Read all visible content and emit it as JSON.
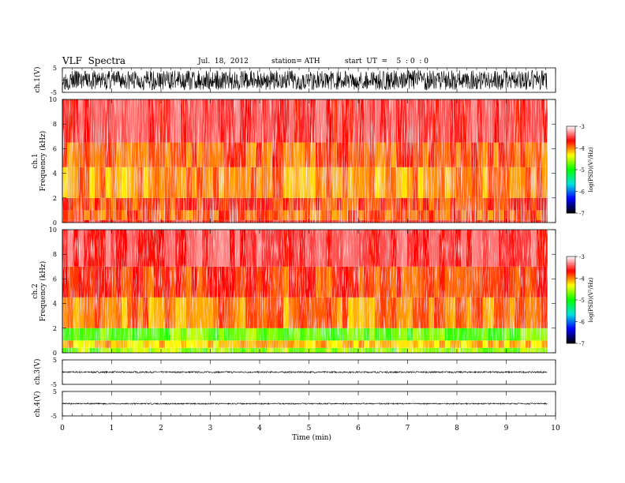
{
  "header": {
    "title": "VLF  Spectra",
    "date": "Jul.  18,  2012",
    "station": "station= ATH",
    "start": "start  UT  =    5  : 0  : 0"
  },
  "chart_data": [
    {
      "type": "line",
      "panel": "ch1-waveform",
      "ylabel": "ch.1(V)",
      "ylim": [
        -5,
        5
      ],
      "ytick_labels": [
        "5",
        "-5"
      ],
      "xlim": [
        0,
        10
      ],
      "data_extent_min": 9.83,
      "amplitude_envelope": 4.0
    },
    {
      "type": "heatmap",
      "panel": "ch1-spectrogram",
      "ylabel_line1": "ch.1",
      "ylabel_line2": "Frequency  (kHz)",
      "ylim": [
        0,
        10
      ],
      "yticks": [
        "0",
        "2",
        "4",
        "6",
        "8",
        "10"
      ],
      "xlim": [
        0,
        10
      ],
      "data_extent_min": 9.83,
      "colorbar": {
        "label": "log(PSD)(V²/Hz)",
        "range": [
          -7,
          -3
        ],
        "ticks": [
          "-3",
          "-4",
          "-5",
          "-6",
          "-7"
        ],
        "colors": [
          "#000000",
          "#0000ff",
          "#00e0e0",
          "#00ff00",
          "#ffff00",
          "#ff0000",
          "#ffffff"
        ]
      },
      "bands": [
        {
          "freq_khz": [
            0,
            0.2
          ],
          "level": -3.6
        },
        {
          "freq_khz": [
            0.2,
            1.0
          ],
          "level": -3.9
        },
        {
          "freq_khz": [
            1.0,
            2.0
          ],
          "level": -3.8
        },
        {
          "freq_khz": [
            2.0,
            4.5
          ],
          "level": -4.05
        },
        {
          "freq_khz": [
            4.5,
            6.5
          ],
          "level": -3.9
        },
        {
          "freq_khz": [
            6.5,
            10.0
          ],
          "level": -3.55
        }
      ]
    },
    {
      "type": "heatmap",
      "panel": "ch2-spectrogram",
      "ylabel_line1": "ch.2",
      "ylabel_line2": "Frequency  (kHz)",
      "ylim": [
        0,
        10
      ],
      "yticks": [
        "0",
        "2",
        "4",
        "6",
        "8",
        "10"
      ],
      "xlim": [
        0,
        10
      ],
      "data_extent_min": 9.83,
      "colorbar": {
        "label": "log(PSD)(V²/Hz)",
        "range": [
          -7,
          -3
        ],
        "ticks": [
          "-3",
          "-4",
          "-5",
          "-6",
          "-7"
        ],
        "colors": [
          "#000000",
          "#0000ff",
          "#00e0e0",
          "#00ff00",
          "#ffff00",
          "#ff0000",
          "#ffffff"
        ]
      },
      "bands": [
        {
          "freq_khz": [
            0,
            0.4
          ],
          "level": -4.6
        },
        {
          "freq_khz": [
            0.4,
            1.0
          ],
          "level": -4.2
        },
        {
          "freq_khz": [
            1.0,
            2.0
          ],
          "level": -4.7
        },
        {
          "freq_khz": [
            2.0,
            4.5
          ],
          "level": -4.0
        },
        {
          "freq_khz": [
            4.5,
            7.0
          ],
          "level": -3.8
        },
        {
          "freq_khz": [
            7.0,
            10.0
          ],
          "level": -3.5
        }
      ]
    },
    {
      "type": "line",
      "panel": "ch3-waveform",
      "ylabel": "ch.3(V)",
      "ylim": [
        -5,
        5
      ],
      "ytick_labels": [
        "5",
        "-5"
      ],
      "xlim": [
        0,
        10
      ],
      "data_extent_min": 9.83,
      "amplitude_envelope": 0.3
    },
    {
      "type": "line",
      "panel": "ch4-waveform",
      "ylabel": "ch.4(V)",
      "ylim": [
        -5,
        5
      ],
      "ytick_labels": [
        "5",
        "-5"
      ],
      "xlim": [
        0,
        10
      ],
      "data_extent_min": 9.83,
      "amplitude_envelope": 0.25
    }
  ],
  "x_axis": {
    "label": "Time  (min)",
    "ticks": [
      "0",
      "1",
      "2",
      "3",
      "4",
      "5",
      "6",
      "7",
      "8",
      "9",
      "10"
    ]
  }
}
